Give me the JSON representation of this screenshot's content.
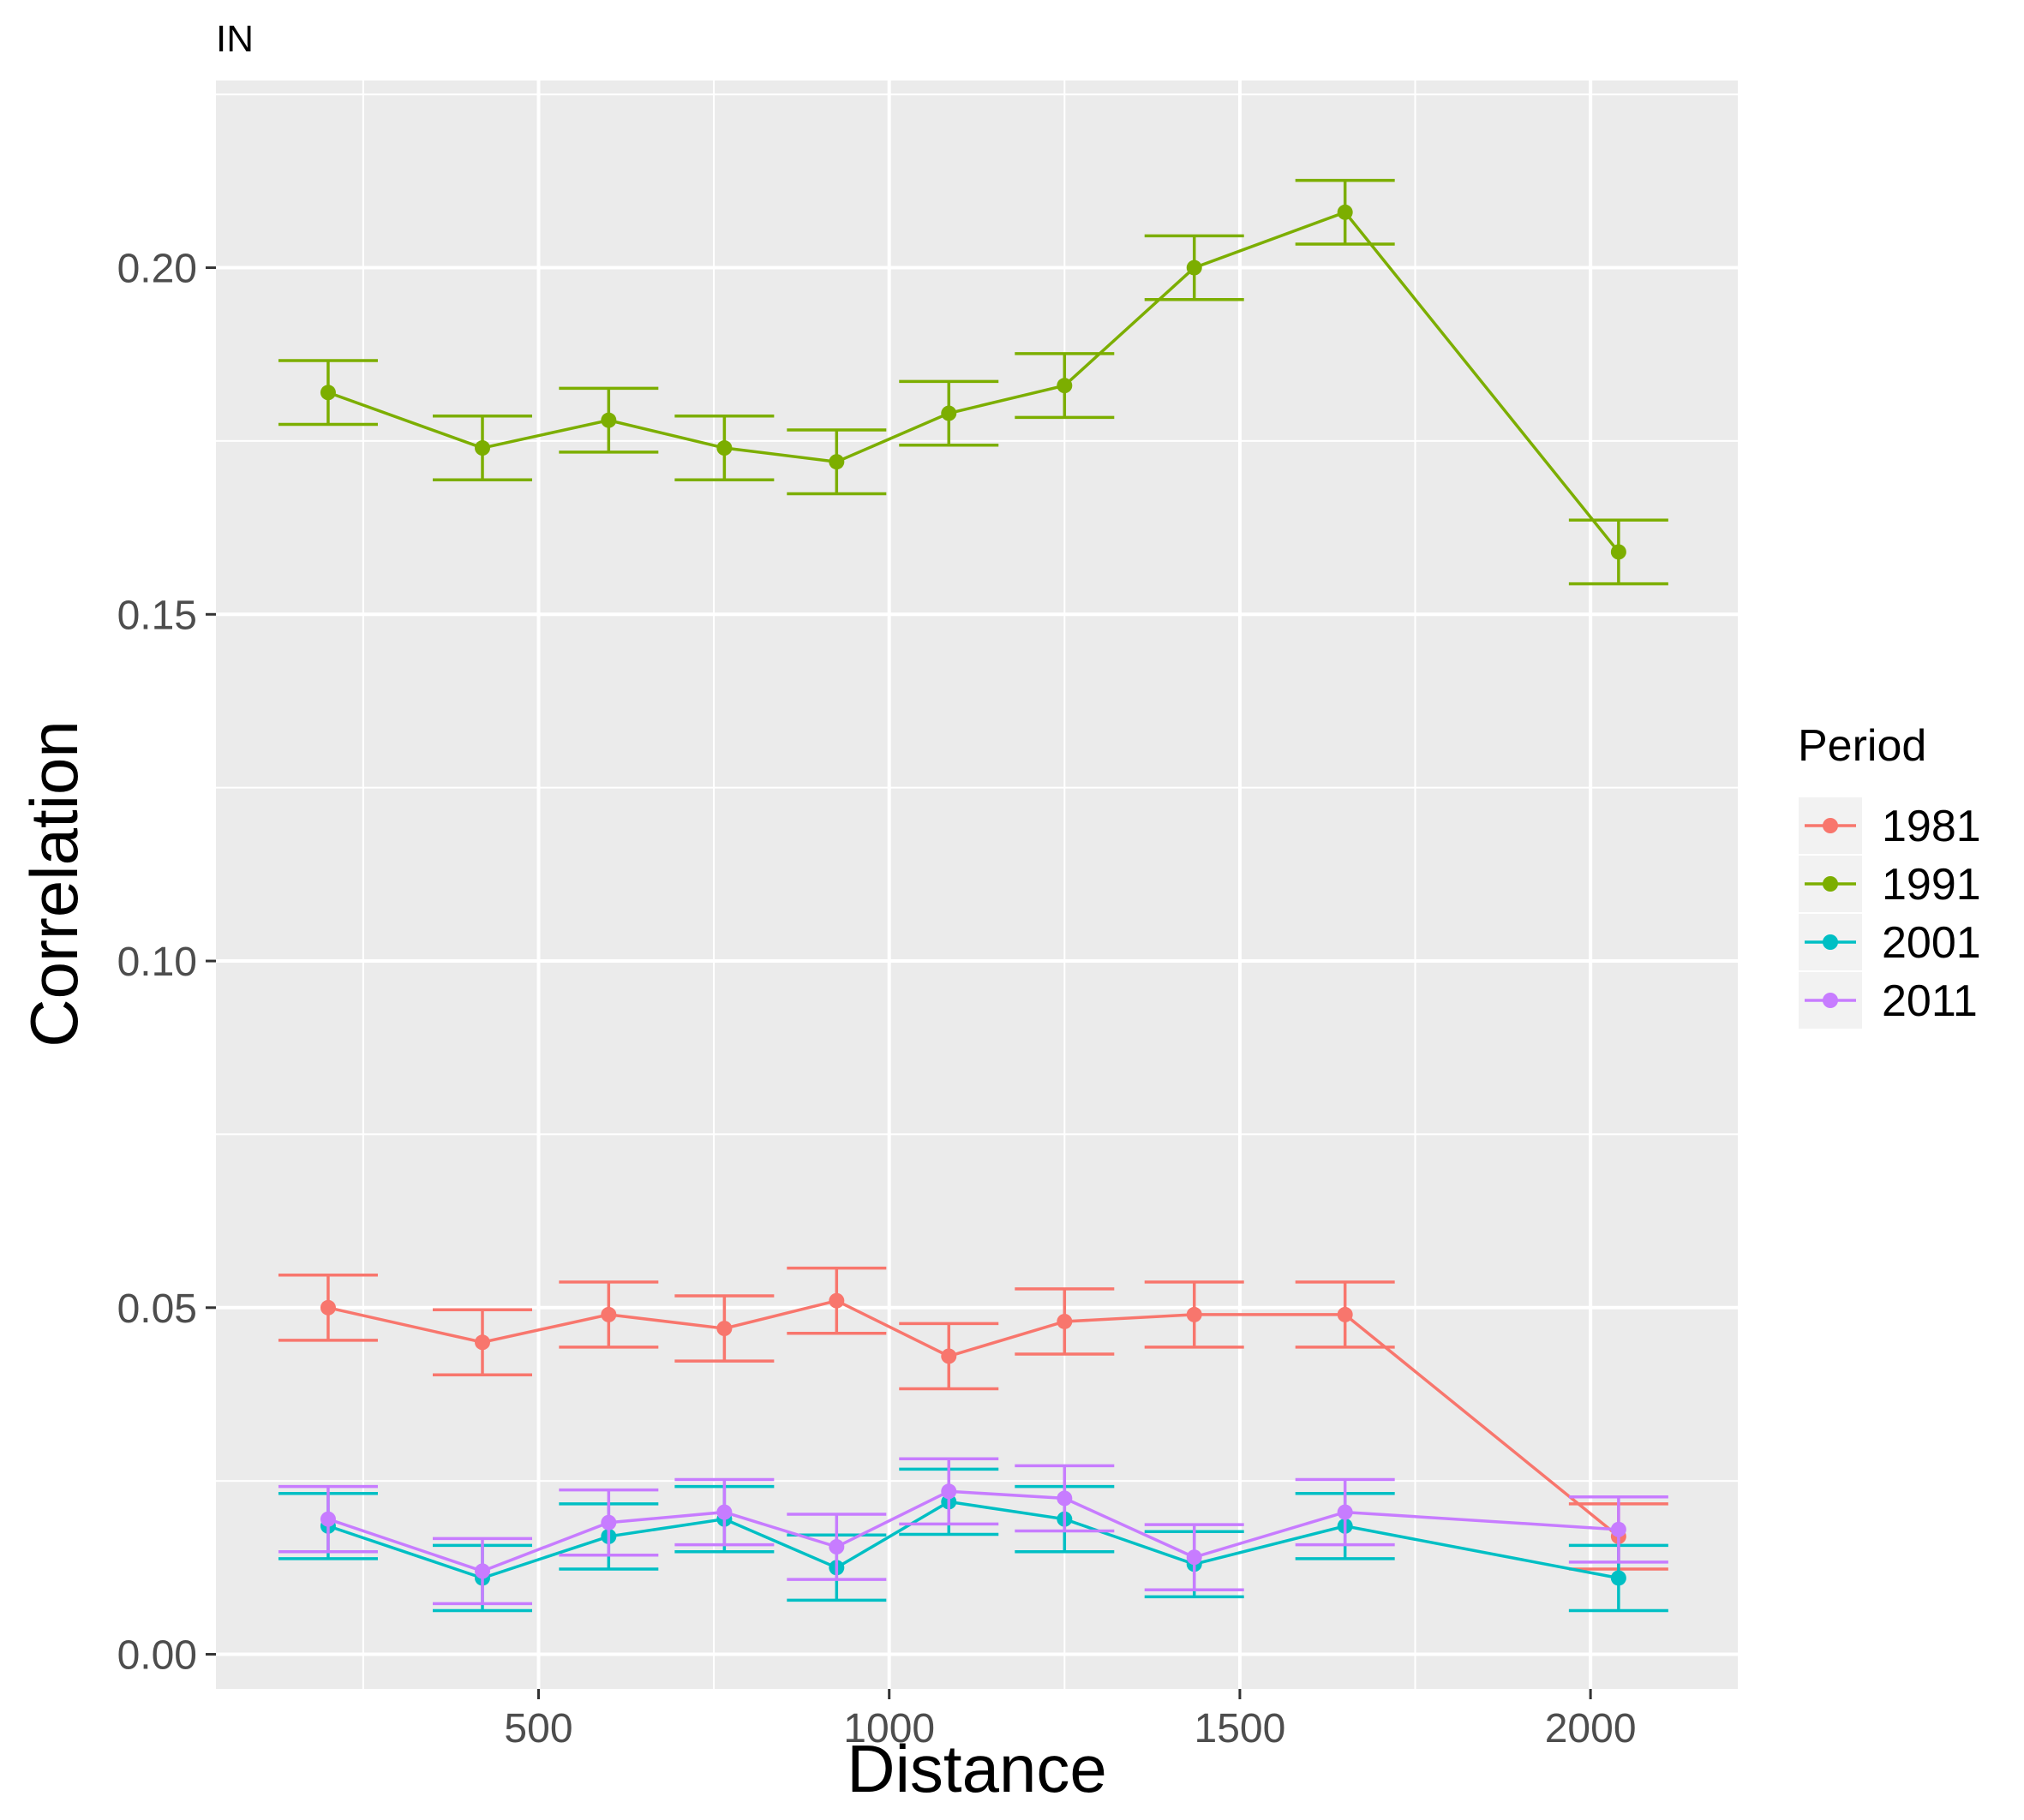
{
  "chart_data": {
    "type": "line",
    "title": "IN",
    "xlabel": "Distance",
    "ylabel": "Correlation",
    "xlim": [
      40,
      2210
    ],
    "ylim": [
      -0.005,
      0.227
    ],
    "x_ticks": [
      500,
      1000,
      1500,
      2000
    ],
    "y_ticks": [
      0.0,
      0.05,
      0.1,
      0.15,
      0.2
    ],
    "y_tick_labels": [
      "0.00",
      "0.05",
      "0.10",
      "0.15",
      "0.20"
    ],
    "x_tick_labels": [
      "500",
      "1000",
      "1500",
      "2000"
    ],
    "grid": true,
    "legend": {
      "title": "Period",
      "position": "right"
    },
    "x": [
      200,
      420,
      600,
      765,
      925,
      1085,
      1250,
      1435,
      1650,
      2040
    ],
    "series": [
      {
        "name": "1981",
        "color": "#F8766D",
        "values": [
          0.05,
          0.045,
          0.049,
          0.047,
          0.051,
          0.043,
          0.048,
          0.049,
          0.049,
          0.017
        ],
        "err": [
          0.0047,
          0.0047,
          0.0047,
          0.0047,
          0.0047,
          0.0047,
          0.0047,
          0.0047,
          0.0047,
          0.0047
        ]
      },
      {
        "name": "1991",
        "color": "#7CAE00",
        "values": [
          0.182,
          0.174,
          0.178,
          0.174,
          0.172,
          0.179,
          0.183,
          0.2,
          0.208,
          0.159
        ],
        "err": [
          0.0046,
          0.0046,
          0.0046,
          0.0046,
          0.0046,
          0.0046,
          0.0046,
          0.0046,
          0.0046,
          0.0046
        ]
      },
      {
        "name": "2001",
        "color": "#00BFC4",
        "values": [
          0.0185,
          0.011,
          0.017,
          0.0195,
          0.0125,
          0.022,
          0.0195,
          0.013,
          0.0185,
          0.011
        ],
        "err": [
          0.0047,
          0.0047,
          0.0047,
          0.0047,
          0.0047,
          0.0047,
          0.0047,
          0.0047,
          0.0047,
          0.0047
        ]
      },
      {
        "name": "2011",
        "color": "#C77CFF",
        "values": [
          0.0195,
          0.012,
          0.019,
          0.0205,
          0.0155,
          0.0235,
          0.0225,
          0.014,
          0.0205,
          0.018
        ],
        "err": [
          0.0047,
          0.0047,
          0.0047,
          0.0047,
          0.0047,
          0.0047,
          0.0047,
          0.0047,
          0.0047,
          0.0047
        ]
      }
    ]
  }
}
